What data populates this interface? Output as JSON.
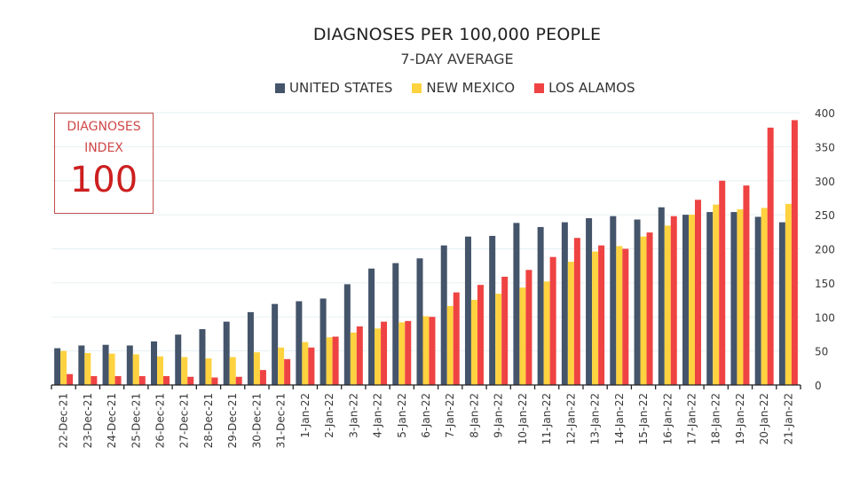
{
  "chart_data": {
    "type": "bar",
    "title": "DIAGNOSES PER 100,000 PEOPLE",
    "subtitle": "7-DAY AVERAGE",
    "xlabel": "",
    "ylabel": "",
    "ylim": [
      0,
      400
    ],
    "yticks": [
      0,
      50,
      100,
      150,
      200,
      250,
      300,
      350,
      400
    ],
    "grid": true,
    "legend_position": "top-center",
    "categories": [
      "22-Dec-21",
      "23-Dec-21",
      "24-Dec-21",
      "25-Dec-21",
      "26-Dec-21",
      "27-Dec-21",
      "28-Dec-21",
      "29-Dec-21",
      "30-Dec-21",
      "31-Dec-21",
      "1-Jan-22",
      "2-Jan-22",
      "3-Jan-22",
      "4-Jan-22",
      "5-Jan-22",
      "6-Jan-22",
      "7-Jan-22",
      "8-Jan-22",
      "9-Jan-22",
      "10-Jan-22",
      "11-Jan-22",
      "12-Jan-22",
      "13-Jan-22",
      "14-Jan-22",
      "15-Jan-22",
      "16-Jan-22",
      "17-Jan-22",
      "18-Jan-22",
      "19-Jan-22",
      "20-Jan-22",
      "21-Jan-22"
    ],
    "series": [
      {
        "name": "UNITED STATES",
        "color": "#44546a",
        "values": [
          54,
          58,
          59,
          58,
          64,
          74,
          82,
          93,
          107,
          119,
          123,
          127,
          148,
          171,
          179,
          186,
          205,
          218,
          219,
          238,
          232,
          239,
          245,
          248,
          243,
          261,
          250,
          254,
          254,
          247,
          239
        ]
      },
      {
        "name": "NEW MEXICO",
        "color": "#ffd23f",
        "values": [
          50,
          47,
          46,
          45,
          42,
          41,
          39,
          41,
          48,
          55,
          63,
          70,
          77,
          83,
          92,
          101,
          116,
          125,
          134,
          143,
          152,
          181,
          196,
          204,
          218,
          234,
          250,
          265,
          258,
          260,
          266
        ]
      },
      {
        "name": "LOS ALAMOS",
        "color": "#ef4343",
        "values": [
          16,
          13,
          13,
          13,
          13,
          12,
          11,
          12,
          22,
          38,
          55,
          71,
          86,
          93,
          94,
          100,
          136,
          147,
          159,
          169,
          188,
          216,
          205,
          200,
          224,
          248,
          272,
          300,
          293,
          378,
          389
        ]
      }
    ]
  },
  "index_box": {
    "label_line1": "DIAGNOSES",
    "label_line2": "INDEX",
    "value": "100",
    "color": "#cc1f1f"
  }
}
